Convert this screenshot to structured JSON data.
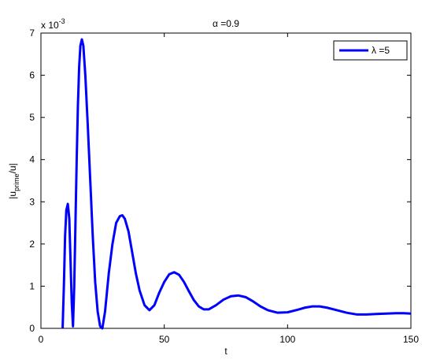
{
  "chart_data": {
    "type": "line",
    "title": "α =0.9",
    "xlabel": "t",
    "ylabel": {
      "base": "|u",
      "subscript": "prime",
      "tail": "/u|"
    },
    "y_multiplier": {
      "base": "x 10",
      "exponent": "-3"
    },
    "x": [
      8.8,
      9.3,
      9.8,
      10.3,
      10.9,
      11.5,
      12.0,
      12.5,
      13.0,
      13.5,
      14.0,
      14.5,
      15.0,
      15.5,
      16.0,
      16.6,
      17.2,
      18.0,
      19.0,
      20.0,
      21.0,
      22.0,
      23.0,
      24.0,
      24.9,
      26.0,
      27.5,
      29.0,
      30.5,
      32.0,
      33.0,
      34.0,
      35.5,
      37.0,
      38.5,
      40.0,
      42.0,
      44.0,
      46.0,
      48.0,
      50.0,
      52.0,
      54.0,
      56.0,
      58.0,
      60.0,
      62.0,
      64.0,
      66.0,
      68.0,
      71.0,
      74.0,
      77.0,
      80.0,
      83.0,
      86.0,
      89.0,
      92.0,
      96.0,
      100,
      104,
      107,
      110,
      113,
      116,
      120,
      124,
      128,
      132,
      136,
      140,
      144,
      147,
      150
    ],
    "series": [
      {
        "name": "λ =5",
        "color": "#0000ff",
        "values": [
          0,
          1.0,
          2.2,
          2.8,
          2.95,
          2.6,
          1.6,
          0.6,
          0.05,
          1.0,
          2.5,
          4.0,
          5.3,
          6.2,
          6.7,
          6.85,
          6.7,
          6.0,
          4.8,
          3.5,
          2.2,
          1.1,
          0.4,
          0.05,
          0.0,
          0.4,
          1.3,
          2.0,
          2.5,
          2.66,
          2.68,
          2.6,
          2.3,
          1.8,
          1.3,
          0.9,
          0.55,
          0.43,
          0.55,
          0.85,
          1.1,
          1.28,
          1.33,
          1.27,
          1.1,
          0.88,
          0.67,
          0.52,
          0.45,
          0.45,
          0.55,
          0.68,
          0.76,
          0.78,
          0.74,
          0.64,
          0.52,
          0.43,
          0.37,
          0.38,
          0.44,
          0.49,
          0.52,
          0.52,
          0.49,
          0.43,
          0.37,
          0.33,
          0.33,
          0.34,
          0.35,
          0.36,
          0.36,
          0.35
        ]
      }
    ],
    "xlim": [
      0,
      150
    ],
    "xticks": [
      0,
      50,
      100,
      150
    ],
    "ylim": [
      0,
      7
    ],
    "yticks": [
      0,
      1,
      2,
      3,
      4,
      5,
      6,
      7
    ],
    "grid": false,
    "legend": "northeast"
  }
}
